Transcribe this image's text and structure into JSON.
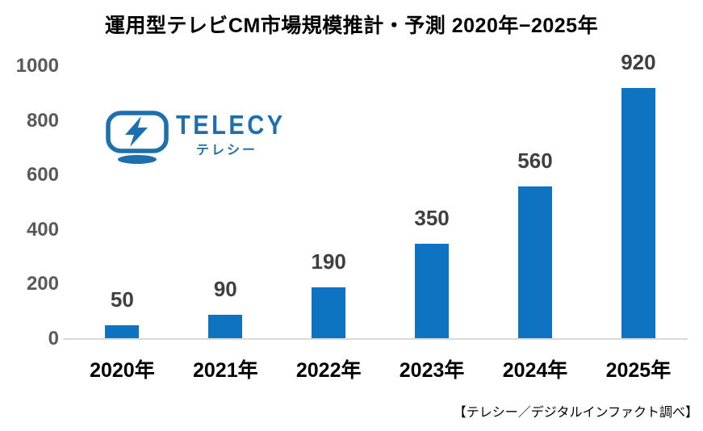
{
  "title": "運用型テレビCM市場規模推計・予測 2020年−2025年",
  "logo": {
    "brand": "TELECY",
    "brand_sub": "テレシー",
    "color": "#1e6fad",
    "icon": "tv-lightning-icon"
  },
  "footer": {
    "source": "【テレシー／デジタルインファクト調べ】"
  },
  "chart_data": {
    "type": "bar",
    "title": "運用型テレビCM市場規模推計・予測 2020年−2025年",
    "categories": [
      "2020年",
      "2021年",
      "2022年",
      "2023年",
      "2024年",
      "2025年"
    ],
    "values": [
      50,
      90,
      190,
      350,
      560,
      920
    ],
    "xlabel": "",
    "ylabel": "",
    "ylim": [
      0,
      1000
    ],
    "yticks": [
      0,
      200,
      400,
      600,
      800,
      1000
    ],
    "grid": false,
    "legend": false,
    "data_labels": true,
    "bar_color": "#0e74c2",
    "data_label_color": "#3f3f3f",
    "tick_color": "#595959",
    "axis_line_color": "#d9d9d9"
  }
}
